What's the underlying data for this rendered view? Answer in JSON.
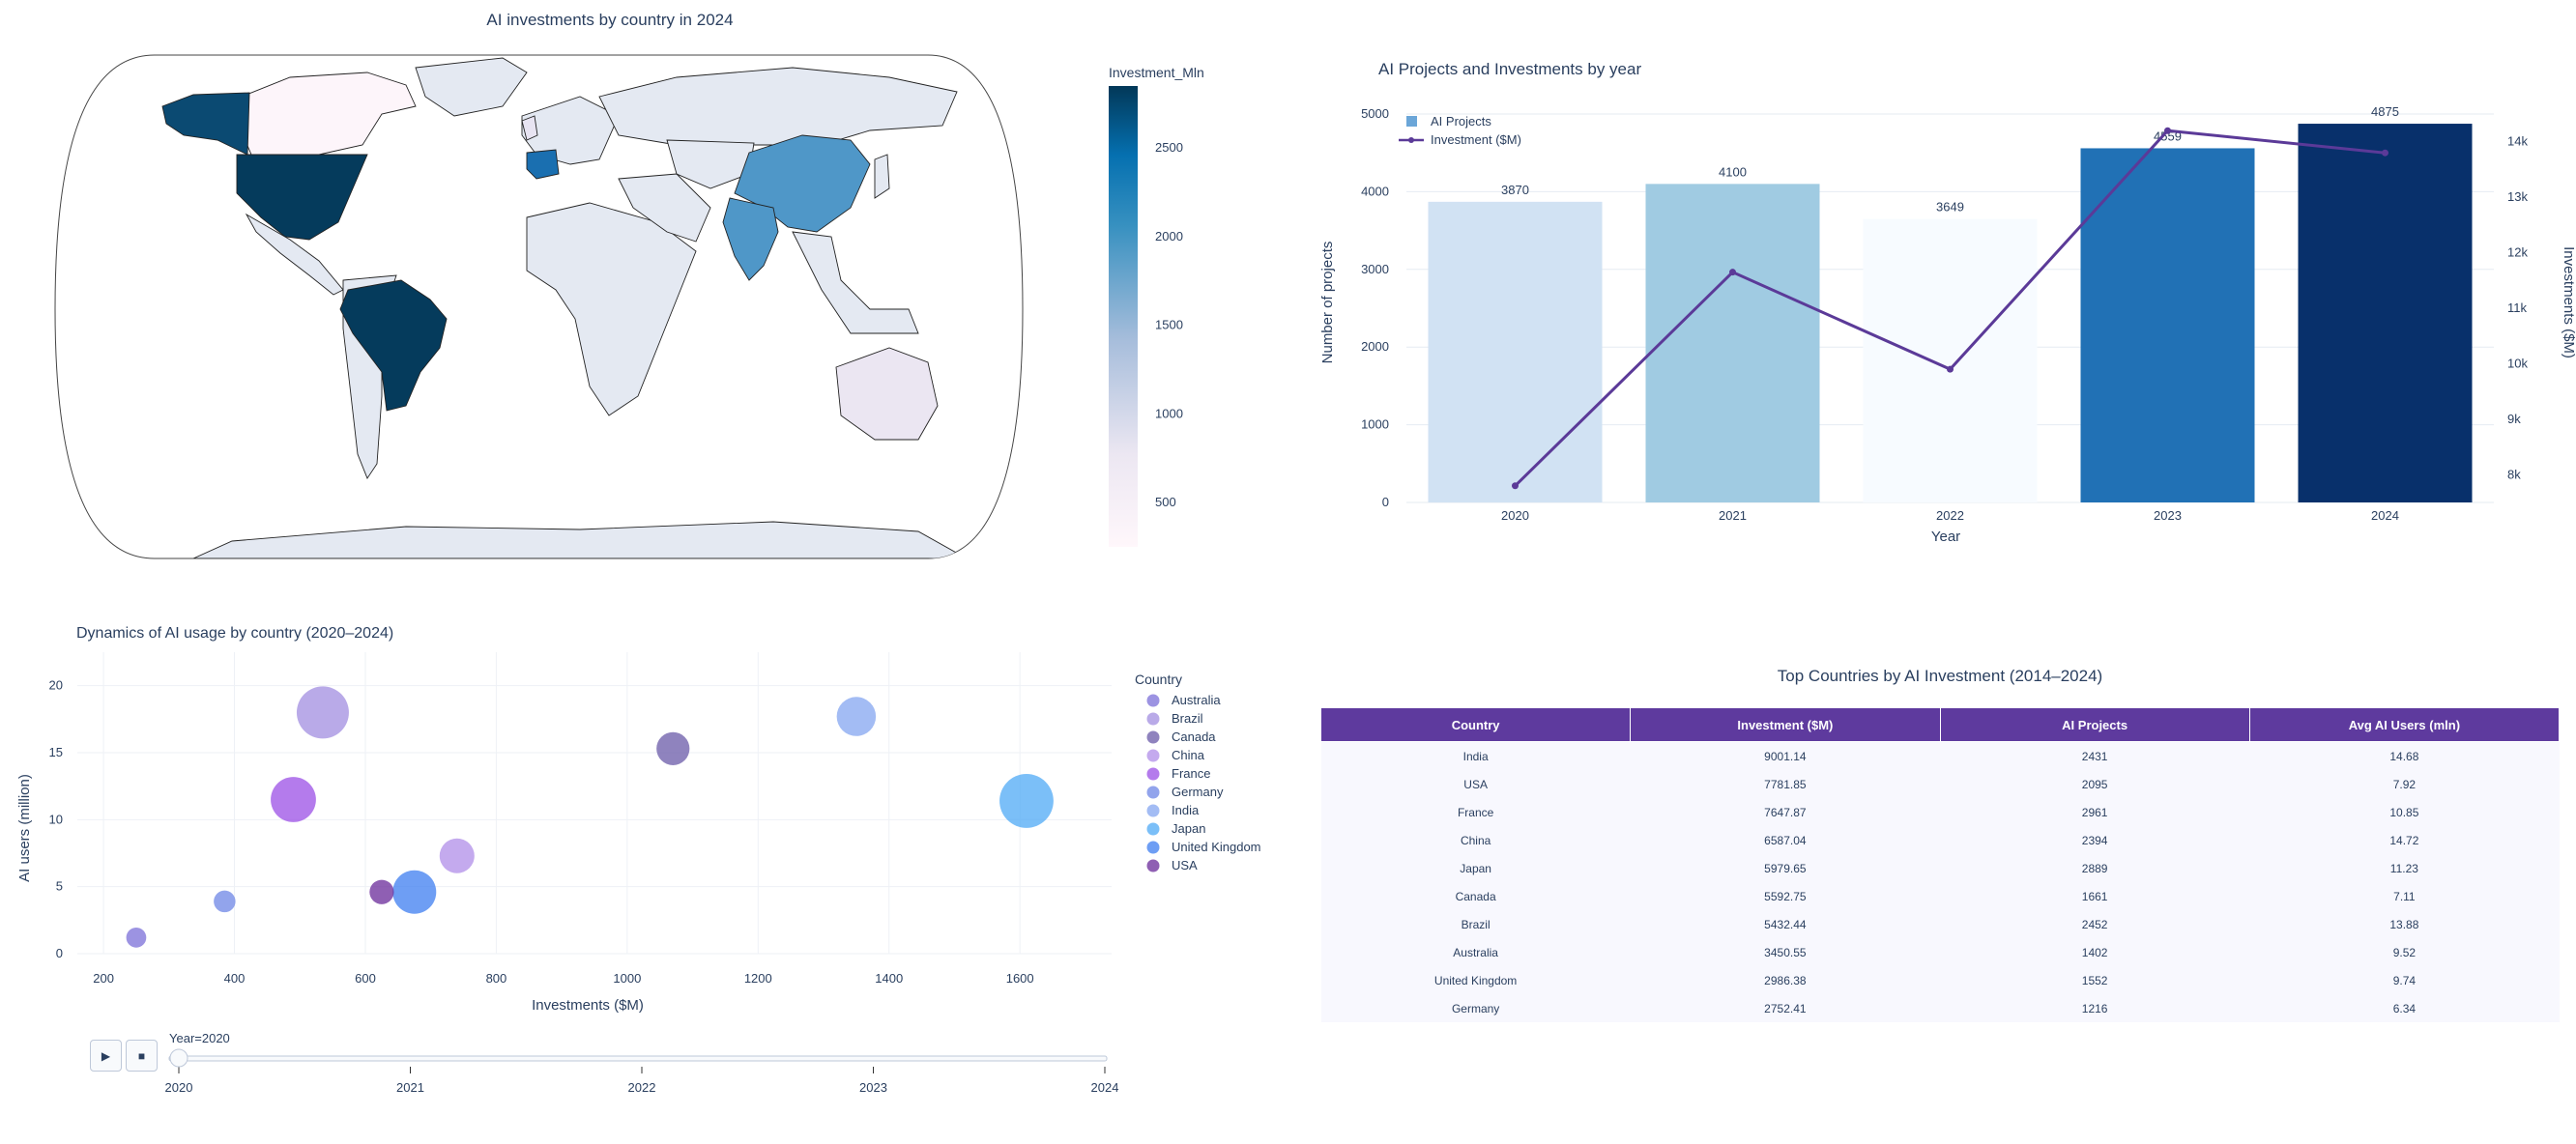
{
  "chart_data": [
    {
      "type": "choropleth",
      "title": "AI investments by country in 2024",
      "colorbar": {
        "title": "Investment_Mln",
        "ticks": [
          500,
          1000,
          1500,
          2000,
          2500
        ]
      },
      "regions": [
        {
          "name": "USA",
          "shade": 0.95
        },
        {
          "name": "Brazil",
          "shade": 0.97
        },
        {
          "name": "France",
          "shade": 0.72
        },
        {
          "name": "China",
          "shade": 0.52
        },
        {
          "name": "India",
          "shade": 0.52
        },
        {
          "name": "Alaska",
          "shade": 0.9
        },
        {
          "name": "Canada",
          "shade": 0.02
        },
        {
          "name": "Australia",
          "shade": 0.1
        },
        {
          "name": "United Kingdom",
          "shade": 0.15
        }
      ]
    },
    {
      "type": "bar",
      "title": "AI Projects and Investments by year",
      "categories": [
        "2020",
        "2021",
        "2022",
        "2023",
        "2024"
      ],
      "series": [
        {
          "name": "AI Projects",
          "kind": "bar",
          "values": [
            3870,
            4100,
            3649,
            4559,
            4875
          ],
          "colors": [
            "#d1e2f3",
            "#a0cbe2",
            "#f7fbff",
            "#2171b5",
            "#08306b"
          ]
        },
        {
          "name": "Investment ($M)",
          "kind": "line",
          "axis": "right",
          "color": "#5b3a98",
          "values": [
            7800,
            11650,
            9900,
            14200,
            13800
          ]
        }
      ],
      "xlabel": "Year",
      "ylabel": "Number of projects",
      "y2label": "Investments ($M)",
      "ylim": [
        0,
        5000
      ],
      "y_ticks": [
        "0",
        "1000",
        "2000",
        "3000",
        "4000",
        "5000"
      ],
      "y2lim": [
        7500,
        14500
      ],
      "y2_ticks": [
        {
          "v": 8000,
          "label": "8k"
        },
        {
          "v": 9000,
          "label": "9k"
        },
        {
          "v": 10000,
          "label": "10k"
        },
        {
          "v": 11000,
          "label": "11k"
        },
        {
          "v": 12000,
          "label": "12k"
        },
        {
          "v": 13000,
          "label": "13k"
        },
        {
          "v": 14000,
          "label": "14k"
        }
      ]
    },
    {
      "type": "scatter",
      "title": "Dynamics of AI usage by country (2020–2024)",
      "xlabel": "Investments ($M)",
      "ylabel": "AI users (million)",
      "xlim": [
        160,
        1740
      ],
      "ylim": [
        0,
        22.5
      ],
      "x_ticks": [
        200,
        400,
        600,
        800,
        1000,
        1200,
        1400,
        1600
      ],
      "y_ticks": [
        0,
        5,
        10,
        15,
        20
      ],
      "legend_title": "Country",
      "points": [
        {
          "name": "Australia",
          "x": 250,
          "y": 1.2,
          "size": 0.23,
          "color": "#7b6fd8"
        },
        {
          "name": "Brazil",
          "x": 535,
          "y": 18,
          "size": 0.6,
          "color": "#a28ee0"
        },
        {
          "name": "Canada",
          "x": 1070,
          "y": 15.3,
          "size": 0.38,
          "color": "#6a5aa8"
        },
        {
          "name": "China",
          "x": 740,
          "y": 7.3,
          "size": 0.4,
          "color": "#b08ee8"
        },
        {
          "name": "France",
          "x": 490,
          "y": 11.5,
          "size": 0.52,
          "color": "#9b4fe6"
        },
        {
          "name": "Germany",
          "x": 385,
          "y": 3.9,
          "size": 0.25,
          "color": "#6e85e6"
        },
        {
          "name": "India",
          "x": 1350,
          "y": 17.7,
          "size": 0.45,
          "color": "#84a6f0"
        },
        {
          "name": "Japan",
          "x": 1610,
          "y": 11.4,
          "size": 0.62,
          "color": "#4fa9f5"
        },
        {
          "name": "United Kingdom",
          "x": 675,
          "y": 4.6,
          "size": 0.5,
          "color": "#3d7df0"
        },
        {
          "name": "USA",
          "x": 625,
          "y": 4.6,
          "size": 0.28,
          "color": "#6a2a9a"
        }
      ]
    },
    {
      "type": "table",
      "title": "Top Countries by AI Investment (2014–2024)",
      "columns": [
        "Country",
        "Investment ($M)",
        "AI Projects",
        "Avg AI Users (mln)"
      ],
      "rows": [
        [
          "India",
          "9001.14",
          "2431",
          "14.68"
        ],
        [
          "USA",
          "7781.85",
          "2095",
          "7.92"
        ],
        [
          "France",
          "7647.87",
          "2961",
          "10.85"
        ],
        [
          "China",
          "6587.04",
          "2394",
          "14.72"
        ],
        [
          "Japan",
          "5979.65",
          "2889",
          "11.23"
        ],
        [
          "Canada",
          "5592.75",
          "1661",
          "7.11"
        ],
        [
          "Brazil",
          "5432.44",
          "2452",
          "13.88"
        ],
        [
          "Australia",
          "3450.55",
          "1402",
          "9.52"
        ],
        [
          "United Kingdom",
          "2986.38",
          "1552",
          "9.74"
        ],
        [
          "Germany",
          "2752.41",
          "1216",
          "6.34"
        ]
      ]
    }
  ],
  "slider": {
    "current_label": "Year=2020",
    "steps": [
      "2020",
      "2021",
      "2022",
      "2023",
      "2024"
    ],
    "value": "2020",
    "play_icon": "play-icon",
    "stop_icon": "stop-icon"
  }
}
